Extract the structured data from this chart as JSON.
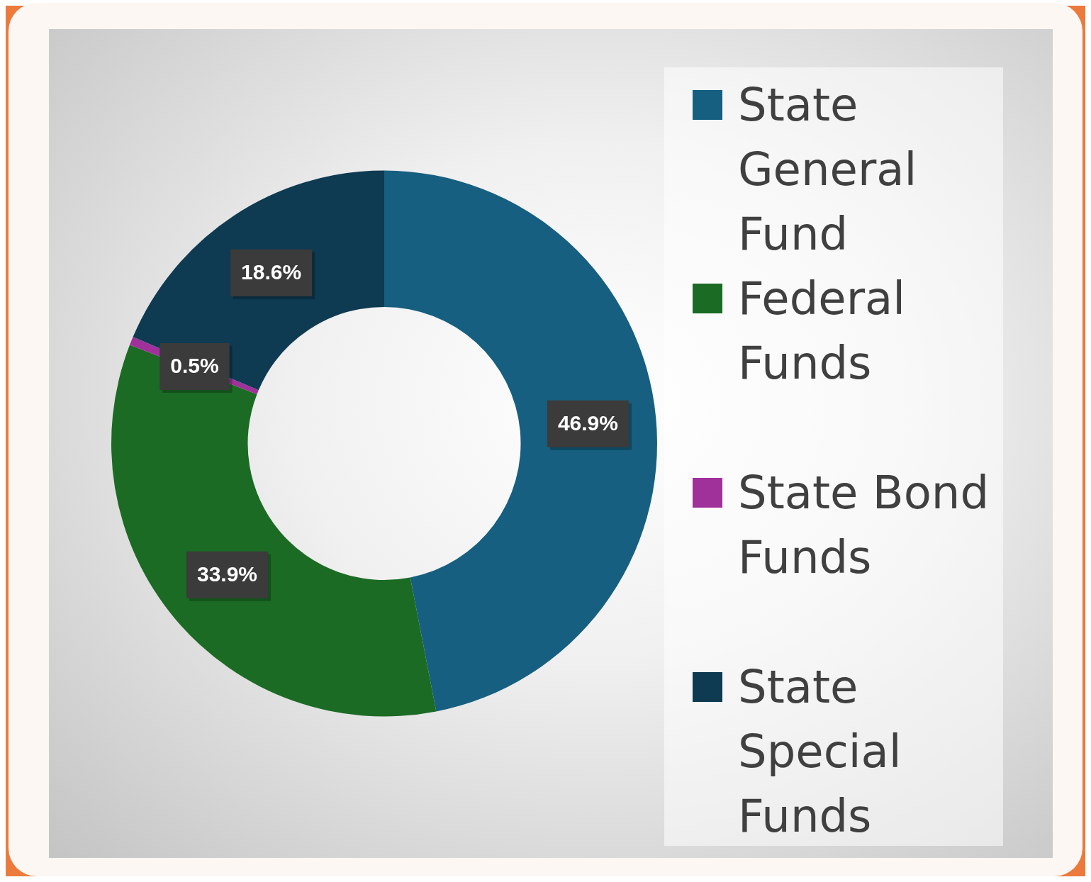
{
  "chart_data": {
    "type": "donut",
    "categories": [
      "State General Fund",
      "Federal Funds",
      "State Bond Funds",
      "State Special Funds"
    ],
    "values": [
      46.9,
      33.9,
      0.5,
      18.6
    ],
    "colors": [
      "#165f80",
      "#1b6b24",
      "#a0309a",
      "#0e3a52"
    ],
    "value_labels": [
      "46.9%",
      "33.9%",
      "0.5%",
      "18.6%"
    ],
    "legend": "right"
  }
}
